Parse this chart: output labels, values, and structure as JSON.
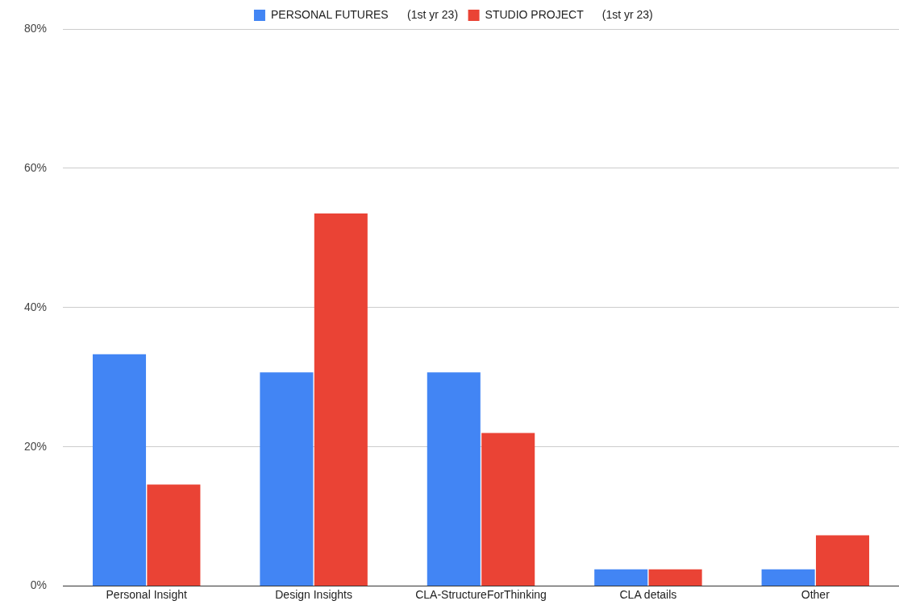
{
  "chart_data": {
    "type": "bar",
    "categories": [
      "Personal Insight",
      "Design Insights",
      "CLA-StructureForThinking",
      "CLA details",
      "Other"
    ],
    "series": [
      {
        "name": "PERSONAL FUTURES      (1st yr 23)",
        "color": "#4285f4",
        "values": [
          33.3,
          30.7,
          30.7,
          2.4,
          2.4
        ]
      },
      {
        "name": "STUDIO PROJECT      (1st yr 23)",
        "color": "#ea4335",
        "values": [
          14.6,
          53.5,
          22.0,
          2.4,
          7.3
        ]
      }
    ],
    "ylim": [
      0,
      80
    ],
    "yticks": [
      {
        "value": 0,
        "label": "0%"
      },
      {
        "value": 20,
        "label": "20%"
      },
      {
        "value": 40,
        "label": "40%"
      },
      {
        "value": 60,
        "label": "60%"
      },
      {
        "value": 80,
        "label": "80%"
      }
    ],
    "grid": "y",
    "legend": "top"
  }
}
